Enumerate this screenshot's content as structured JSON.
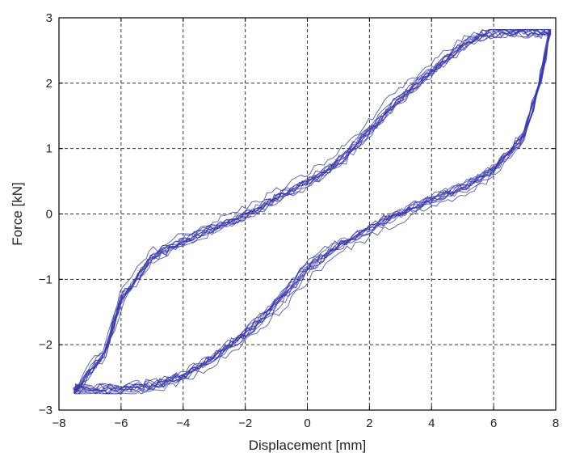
{
  "chart_data": {
    "type": "line",
    "title": "",
    "xlabel": "Displacement [mm]",
    "ylabel": "Force  [kN]",
    "xlim": [
      -8,
      8
    ],
    "ylim": [
      -3,
      3
    ],
    "x_ticks": [
      -8,
      -6,
      -4,
      -2,
      0,
      2,
      4,
      6,
      8
    ],
    "y_ticks": [
      -3,
      -2,
      -1,
      0,
      1,
      2,
      3
    ],
    "x_tick_labels": [
      "−8",
      "−6",
      "−4",
      "−2",
      "0",
      "2",
      "4",
      "6",
      "8"
    ],
    "y_tick_labels": [
      "−3",
      "−2",
      "−1",
      "0",
      "1",
      "2",
      "3"
    ],
    "grid": true,
    "grid_style": "dashed",
    "series_color": "#3a3aa8",
    "hysteresis_cycles": 12,
    "loading_branch": {
      "x": [
        -7.5,
        -6.5,
        -6.0,
        -5.0,
        -4.0,
        -3.0,
        -2.0,
        -1.0,
        0.0,
        1.0,
        2.0,
        3.0,
        4.0,
        5.0,
        5.5,
        6.0,
        7.0,
        7.8
      ],
      "y": [
        -2.7,
        -2.1,
        -1.3,
        -0.65,
        -0.4,
        -0.2,
        0.0,
        0.25,
        0.5,
        0.8,
        1.3,
        1.8,
        2.2,
        2.6,
        2.72,
        2.8,
        2.8,
        2.8
      ]
    },
    "unloading_branch": {
      "x": [
        7.8,
        7.6,
        7.0,
        6.0,
        5.0,
        4.0,
        3.0,
        2.0,
        1.0,
        0.0,
        -1.0,
        -2.0,
        -3.0,
        -4.0,
        -5.0,
        -5.8,
        -6.6,
        -7.5
      ],
      "y": [
        2.8,
        2.2,
        1.2,
        0.65,
        0.38,
        0.2,
        0.0,
        -0.25,
        -0.5,
        -0.85,
        -1.4,
        -1.85,
        -2.2,
        -2.5,
        -2.65,
        -2.7,
        -2.7,
        -2.7
      ]
    }
  }
}
